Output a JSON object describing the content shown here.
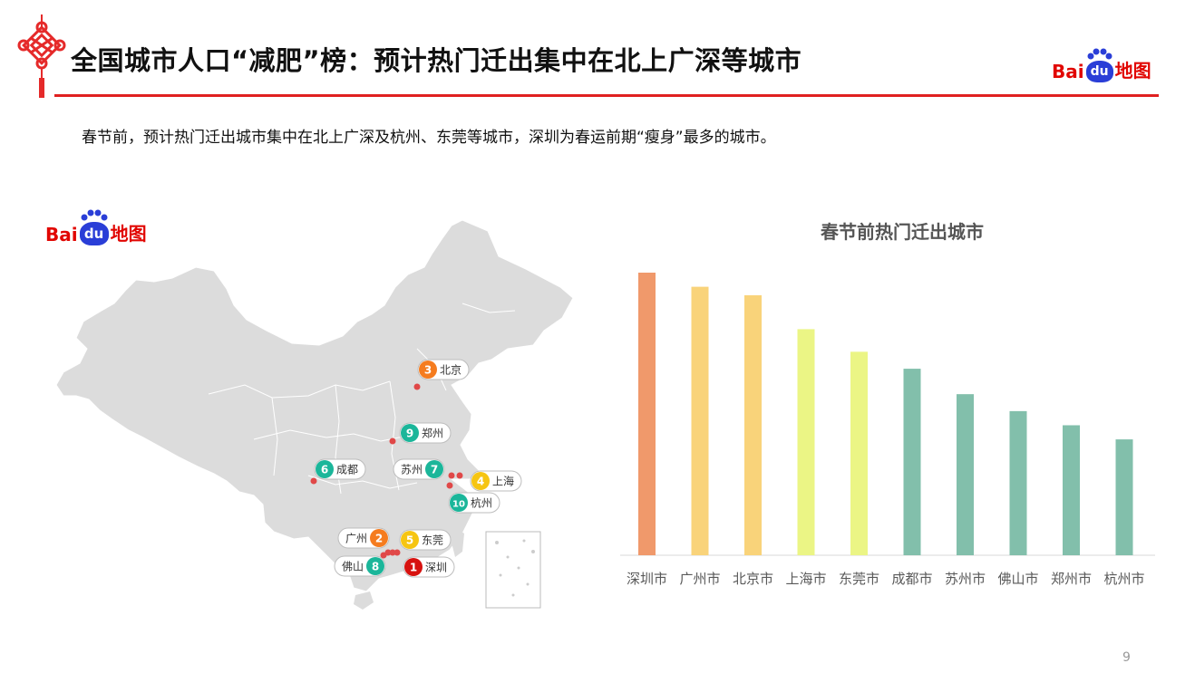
{
  "header": {
    "title": "全国城市人口“减肥”榜：预计热门迁出集中在北上广深等城市",
    "subtitle": "春节前，预计热门迁出城市集中在北上广深及杭州、东莞等城市，深圳为春运前期“瘦身”最多的城市。",
    "logo": {
      "bai": "Bai",
      "du": "du",
      "map": "地图"
    },
    "page_number": "9"
  },
  "map": {
    "markers": [
      {
        "rank": "1",
        "city": "深圳",
        "color": "#d7120f"
      },
      {
        "rank": "2",
        "city": "广州",
        "color": "#f57c1f"
      },
      {
        "rank": "3",
        "city": "北京",
        "color": "#f57c1f"
      },
      {
        "rank": "4",
        "city": "上海",
        "color": "#f6c512"
      },
      {
        "rank": "5",
        "city": "东莞",
        "color": "#f6c512"
      },
      {
        "rank": "6",
        "city": "成都",
        "color": "#1bb69a"
      },
      {
        "rank": "7",
        "city": "苏州",
        "color": "#1bb69a"
      },
      {
        "rank": "8",
        "city": "佛山",
        "color": "#1bb69a"
      },
      {
        "rank": "9",
        "city": "郑州",
        "color": "#1bb69a"
      },
      {
        "rank": "10",
        "city": "杭州",
        "color": "#1bb69a"
      }
    ]
  },
  "chart_data": {
    "type": "bar",
    "title": "春节前热门迁出城市",
    "categories": [
      "深圳市",
      "广州市",
      "北京市",
      "上海市",
      "东莞市",
      "成都市",
      "苏州市",
      "佛山市",
      "郑州市",
      "杭州市"
    ],
    "values": [
      100,
      95,
      92,
      80,
      72,
      66,
      57,
      51,
      46,
      41
    ],
    "colors": [
      "#f0996b",
      "#f9d37a",
      "#f9d37a",
      "#ebf585",
      "#ebf585",
      "#82bfab",
      "#82bfab",
      "#82bfab",
      "#82bfab",
      "#82bfab"
    ],
    "ylim": [
      0,
      100
    ],
    "grid": false,
    "legend": "none"
  }
}
